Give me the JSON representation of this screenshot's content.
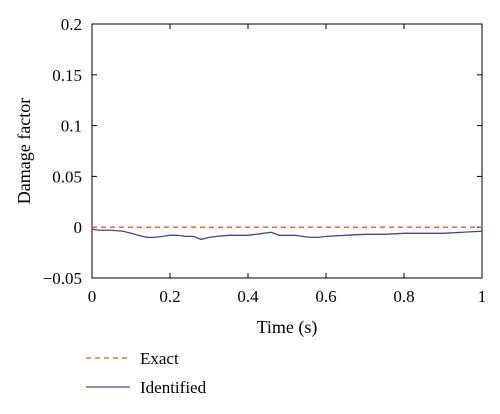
{
  "chart_data": {
    "type": "line",
    "title": "",
    "xlabel": "Time (s)",
    "ylabel": "Damage factor",
    "xlim": [
      0,
      1
    ],
    "ylim": [
      -0.05,
      0.2
    ],
    "xticks": [
      0,
      0.2,
      0.4,
      0.6,
      0.8,
      1
    ],
    "xtick_labels": [
      "0",
      "0.2",
      "0.4",
      "0.6",
      "0.8",
      "1"
    ],
    "yticks": [
      -0.05,
      0,
      0.05,
      0.1,
      0.15,
      0.2
    ],
    "ytick_labels": [
      "−0.05",
      "0",
      "0.05",
      "0.1",
      "0.15",
      "0.2"
    ],
    "grid": false,
    "legend_position": "below-left",
    "series": [
      {
        "name": "Exact",
        "color": "#e8562a",
        "dash": "dashed",
        "x": [
          0,
          1
        ],
        "y": [
          0,
          0
        ]
      },
      {
        "name": "Identified",
        "color": "#3a4a9c",
        "dash": "solid",
        "x": [
          0,
          0.02,
          0.05,
          0.08,
          0.1,
          0.12,
          0.14,
          0.16,
          0.18,
          0.2,
          0.22,
          0.24,
          0.26,
          0.28,
          0.3,
          0.32,
          0.35,
          0.4,
          0.42,
          0.44,
          0.46,
          0.48,
          0.5,
          0.52,
          0.54,
          0.56,
          0.58,
          0.6,
          0.65,
          0.7,
          0.75,
          0.8,
          0.85,
          0.9,
          0.95,
          1.0
        ],
        "y": [
          -0.002,
          -0.003,
          -0.003,
          -0.004,
          -0.006,
          -0.008,
          -0.01,
          -0.01,
          -0.009,
          -0.008,
          -0.008,
          -0.009,
          -0.009,
          -0.012,
          -0.01,
          -0.009,
          -0.008,
          -0.008,
          -0.007,
          -0.006,
          -0.005,
          -0.008,
          -0.008,
          -0.008,
          -0.009,
          -0.01,
          -0.01,
          -0.009,
          -0.008,
          -0.007,
          -0.007,
          -0.006,
          -0.006,
          -0.006,
          -0.005,
          -0.004
        ]
      }
    ]
  }
}
